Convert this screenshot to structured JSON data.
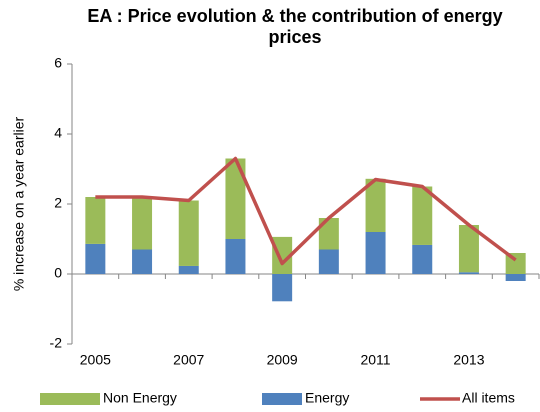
{
  "chart_data": {
    "type": "bar",
    "title": "EA : Price evolution & the contribution of energy prices",
    "y_label": "% increase on a year earlier",
    "categories": [
      "2005",
      null,
      "2007",
      null,
      "2009",
      null,
      "2011",
      null,
      "2013",
      null
    ],
    "series": [
      {
        "name": "Non Energy",
        "color": "#9bbb59",
        "values": [
          1.34,
          1.5,
          1.87,
          2.3,
          1.06,
          0.9,
          1.52,
          1.67,
          1.35,
          0.6
        ]
      },
      {
        "name": "Energy",
        "color": "#4f81bd",
        "values": [
          0.86,
          0.7,
          0.23,
          1.0,
          -0.78,
          0.7,
          1.2,
          0.83,
          0.05,
          -0.2
        ]
      },
      {
        "name": "All items",
        "type": "line",
        "color": "#c0504d",
        "values": [
          2.2,
          2.2,
          2.1,
          3.3,
          0.3,
          1.6,
          2.7,
          2.5,
          1.4,
          0.4
        ]
      }
    ],
    "ylim": [
      -2,
      6
    ],
    "yticks": [
      -2,
      0,
      2,
      4,
      6
    ],
    "grid": false,
    "stacked": true,
    "legend": "bottom"
  }
}
